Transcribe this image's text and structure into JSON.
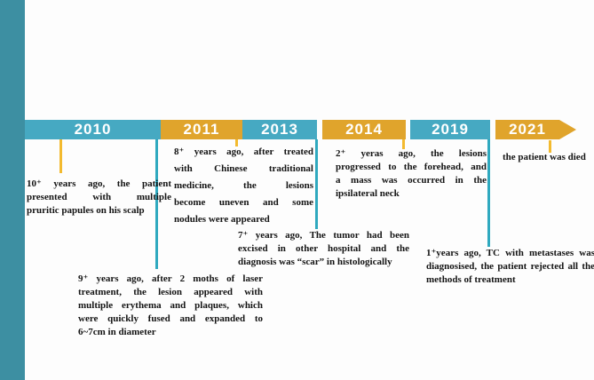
{
  "colors": {
    "bg": "#fdfdfd",
    "sidebar": "#3d8fa2",
    "band_teal": "#46a9c2",
    "band_orange": "#e0a42c",
    "line_orange": "#f3ba2f",
    "line_teal": "#2fa9bf",
    "text": "#141414",
    "year_text": "#ffffff"
  },
  "timeline": {
    "years": [
      {
        "label": "2010"
      },
      {
        "label": "2011"
      },
      {
        "label": "2013"
      },
      {
        "label": "2014"
      },
      {
        "label": "2019"
      },
      {
        "label": "2021"
      }
    ]
  },
  "events": [
    {
      "year": "2010",
      "lines": [
        "10⁺ years ago, the patient",
        "presented with multiple",
        "pruritic papules on his scalp"
      ]
    },
    {
      "year": "2010",
      "lines": [
        "9⁺ years ago, after 2 moths of laser",
        "treatment, the lesion appeared with",
        "multiple erythema and plaques, which",
        "were quickly fused and expanded to",
        "6~7cm in diameter"
      ]
    },
    {
      "year": "2011",
      "lines": [
        "8⁺ years ago, after treated",
        "with Chinese traditional",
        "medicine, the lesions",
        "become uneven and some",
        "nodules were appeared"
      ]
    },
    {
      "year": "2013",
      "lines": [
        "7⁺ years ago, The tumor had been",
        "excised in other hospital and the",
        "diagnosis was “scar” in histologically"
      ]
    },
    {
      "year": "2014",
      "lines": [
        "2⁺ yeras ago, the lesions",
        "progressed to the forehead, and",
        "a mass was occurred in the",
        "ipsilateral neck"
      ]
    },
    {
      "year": "2019",
      "lines": [
        "1⁺years ago, TC with metastases was",
        "diagnosised, the patient rejected all the",
        "methods of treatment"
      ]
    },
    {
      "year": "2021",
      "lines": [
        "the patient was died"
      ]
    }
  ]
}
